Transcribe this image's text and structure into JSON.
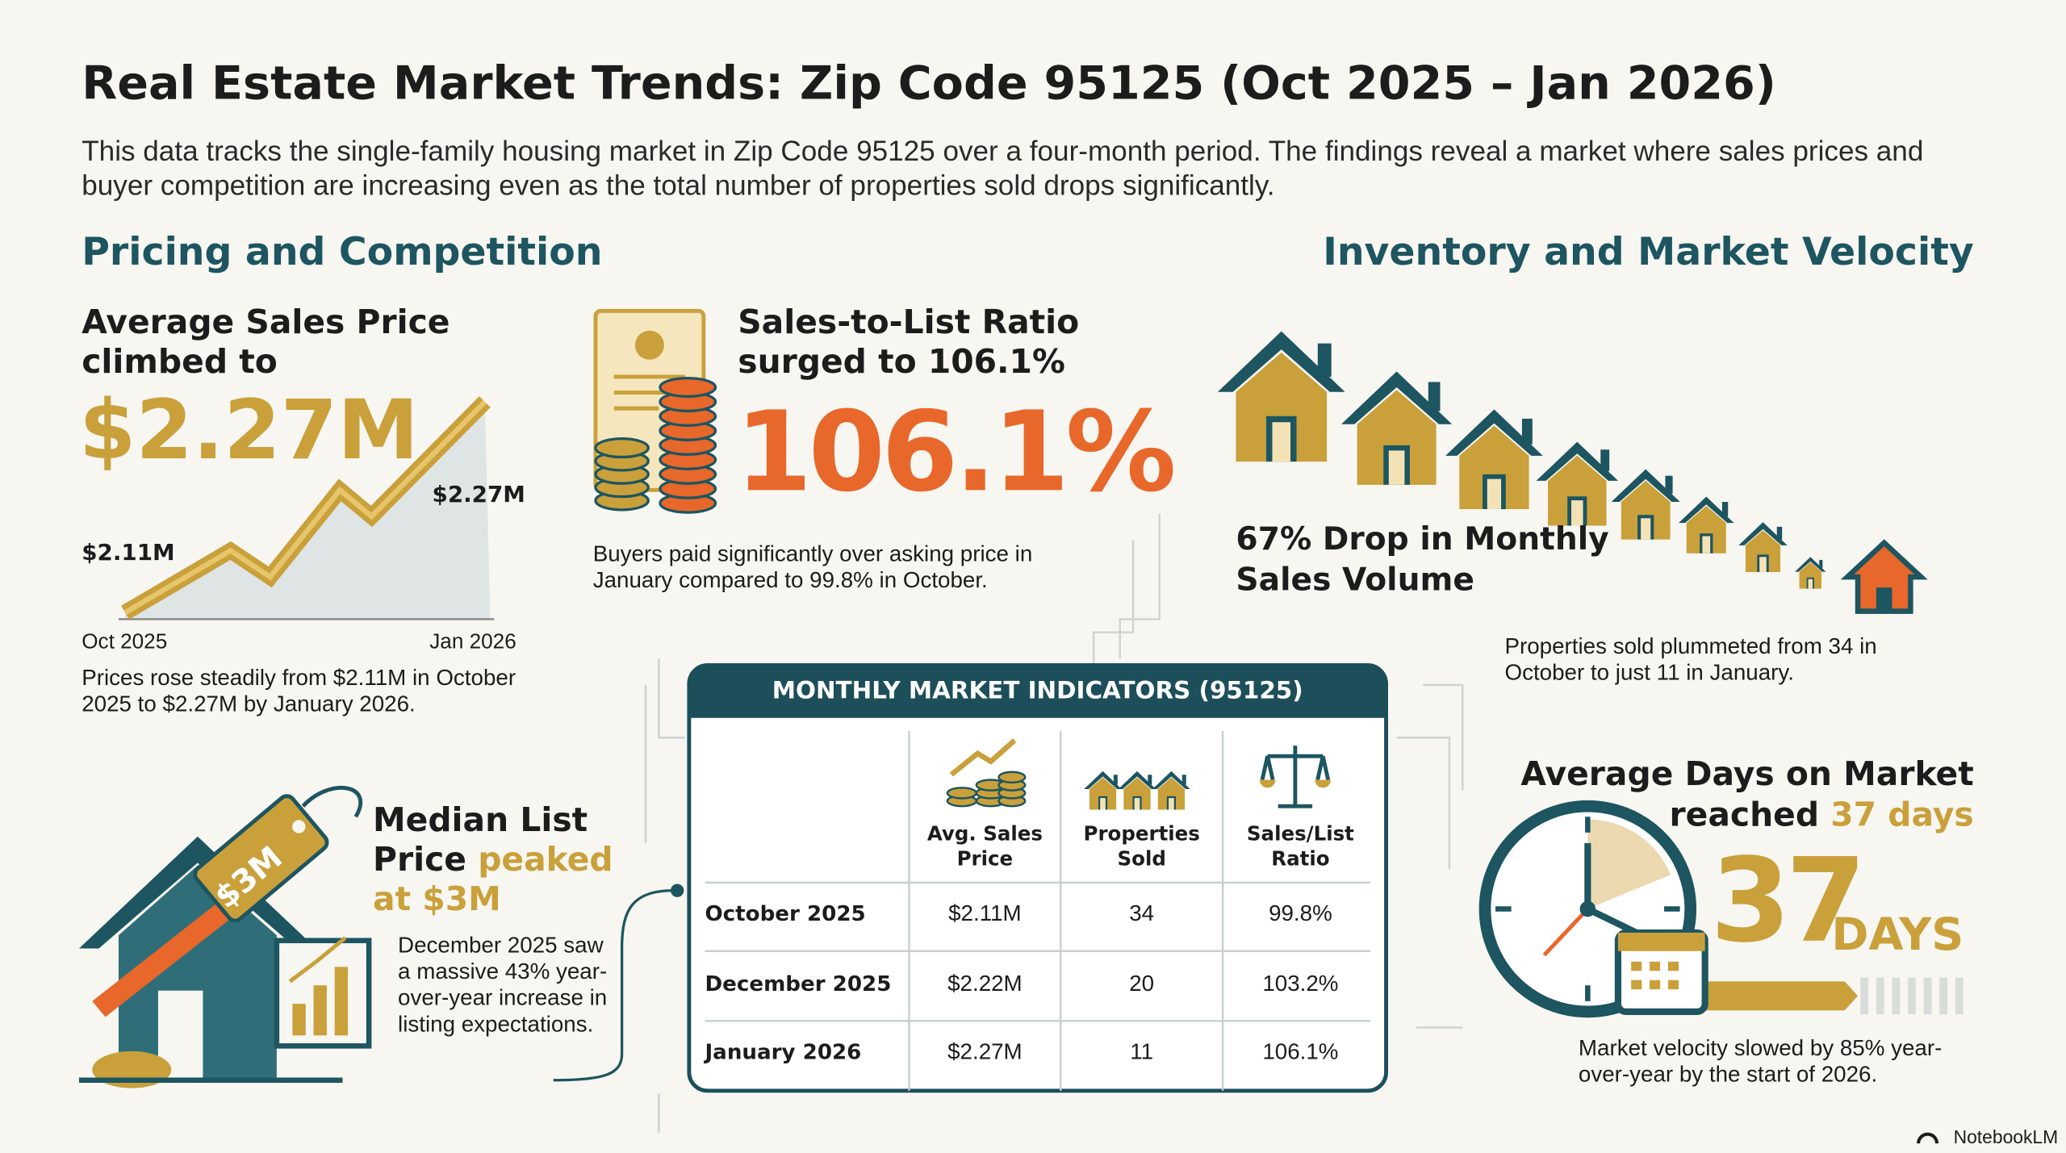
{
  "header": {
    "title": "Real Estate Market Trends: Zip Code 95125 (Oct 2025 – Jan 2026)",
    "description": "This data tracks the single-family housing market in Zip Code 95125 over a four-month period. The findings reveal a market where sales prices and buyer competition are increasing even as the total number of properties sold drops significantly."
  },
  "pricing": {
    "heading": "Pricing and Competition",
    "avg_price": {
      "label": "Average Sales Price climbed to",
      "value": "$2.27M",
      "chart_start_label": "$2.11M",
      "chart_end_label": "$2.27M",
      "x_start": "Oct 2025",
      "x_end": "Jan 2026",
      "note": "Prices rose steadily from $2.11M in October 2025 to $2.27M by January 2026."
    },
    "ratio": {
      "label": "Sales-to-List Ratio surged to 106.1%",
      "value": "106.1%",
      "note": "Buyers paid significantly over asking price in January compared to 99.8% in October."
    },
    "median": {
      "tag": "$3M",
      "label": "Median List Price",
      "highlight": "peaked at $3M",
      "note": "December 2025 saw a massive 43% year-over-year increase in listing expectations."
    }
  },
  "inventory": {
    "heading": "Inventory and Market Velocity",
    "sales_drop": {
      "label": "67% Drop in Monthly Sales Volume",
      "note": "Properties sold plummeted from 34 in October to just 11 in January."
    },
    "days": {
      "label": "Average Days on Market reached",
      "highlight": "37 days",
      "number": "37",
      "unit": "DAYS",
      "note": "Market velocity slowed by 85% year-over-year by the start of 2026."
    }
  },
  "table": {
    "title": "MONTHLY MARKET INDICATORS (95125)",
    "columns": [
      "Avg. Sales Price",
      "Properties Sold",
      "Sales/List Ratio"
    ],
    "rows": [
      [
        "October 2025",
        "$2.11M",
        "34",
        "99.8%"
      ],
      [
        "December 2025",
        "$2.22M",
        "20",
        "103.2%"
      ],
      [
        "January 2026",
        "$2.27M",
        "11",
        "106.1%"
      ]
    ]
  },
  "footer": {
    "brand": "NotebookLM"
  }
}
